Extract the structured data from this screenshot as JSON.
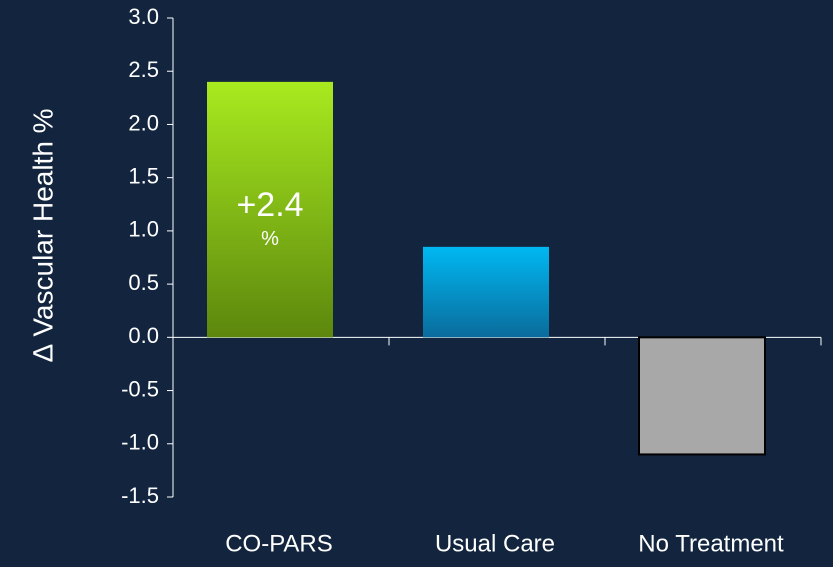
{
  "chart_data": {
    "type": "bar",
    "y_label": "∆ Vascular Health %",
    "categories": [
      "CO-PARS",
      "Usual Care",
      "No Treatment"
    ],
    "values": [
      2.4,
      0.85,
      -1.1
    ],
    "value_labels": [
      "+2.4 %",
      null,
      null
    ],
    "colors": [
      [
        "#a8ea1f",
        "#5c870d"
      ],
      [
        "#00b8f2",
        "#0a6c9c"
      ],
      [
        "#a8a8a8",
        "#a8a8a8"
      ]
    ],
    "ylim": [
      -1.5,
      3.0
    ],
    "yticks": [
      {
        "value": -1.5,
        "label": "-1.5"
      },
      {
        "value": -1,
        "label": "-1.0"
      },
      -0.5,
      {
        "value": 0,
        "label": "0.0"
      },
      0.5,
      {
        "value": 1,
        "label": "1.0"
      },
      1.5,
      {
        "value": 2,
        "label": "2.0"
      },
      2.5,
      {
        "value": 3,
        "label": "3.0"
      }
    ]
  }
}
